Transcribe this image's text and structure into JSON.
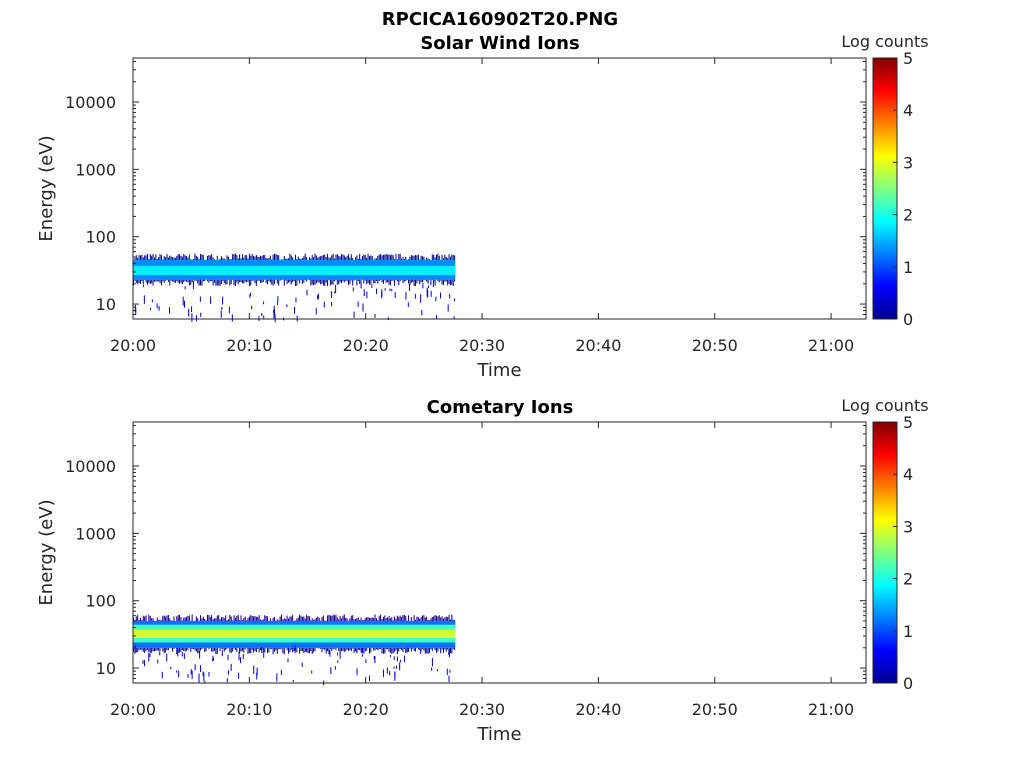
{
  "figure": {
    "title": "RPCICA160902T20.PNG"
  },
  "chart_data": [
    {
      "type": "heatmap",
      "title": "Solar Wind Ions",
      "xlabel": "Time",
      "ylabel": "Energy (eV)",
      "x_ticks": [
        "20:00",
        "20:10",
        "20:20",
        "20:30",
        "20:40",
        "20:50",
        "21:00"
      ],
      "xlim": [
        "20:00",
        "21:03"
      ],
      "y_scale": "log",
      "ylim": [
        6,
        45000
      ],
      "y_ticks": [
        "10",
        "100",
        "1000",
        "10000"
      ],
      "colorbar": {
        "label": "Log counts",
        "ticks": [
          "0",
          "1",
          "2",
          "3",
          "4",
          "5"
        ],
        "range": [
          0,
          5
        ],
        "colormap": "jet"
      },
      "data_time_range": [
        "20:00",
        "20:27.7"
      ],
      "bands": [
        {
          "e_min": 23,
          "e_max": 45,
          "log_counts": 1.3,
          "description": "main band"
        },
        {
          "e_min": 27,
          "e_max": 37,
          "log_counts": 1.8,
          "description": "core"
        }
      ],
      "sparse_energy_range": [
        6,
        20
      ],
      "sparse_log_counts": 0.3
    },
    {
      "type": "heatmap",
      "title": "Cometary Ions",
      "xlabel": "Time",
      "ylabel": "Energy (eV)",
      "x_ticks": [
        "20:00",
        "20:10",
        "20:20",
        "20:30",
        "20:40",
        "20:50",
        "21:00"
      ],
      "xlim": [
        "20:00",
        "21:03"
      ],
      "y_scale": "log",
      "ylim": [
        6,
        45000
      ],
      "y_ticks": [
        "10",
        "100",
        "1000",
        "10000"
      ],
      "colorbar": {
        "label": "Log counts",
        "ticks": [
          "0",
          "1",
          "2",
          "3",
          "4",
          "5"
        ],
        "range": [
          0,
          5
        ],
        "colormap": "jet"
      },
      "data_time_range": [
        "20:00",
        "20:27.7"
      ],
      "bands": [
        {
          "e_min": 20,
          "e_max": 50,
          "log_counts": 1.2,
          "description": "outer band"
        },
        {
          "e_min": 24,
          "e_max": 44,
          "log_counts": 2.2,
          "description": "middle band"
        },
        {
          "e_min": 28,
          "e_max": 38,
          "log_counts": 2.9,
          "description": "core"
        }
      ],
      "sparse_energy_range": [
        6,
        20
      ],
      "sparse_log_counts": 0.3
    }
  ]
}
